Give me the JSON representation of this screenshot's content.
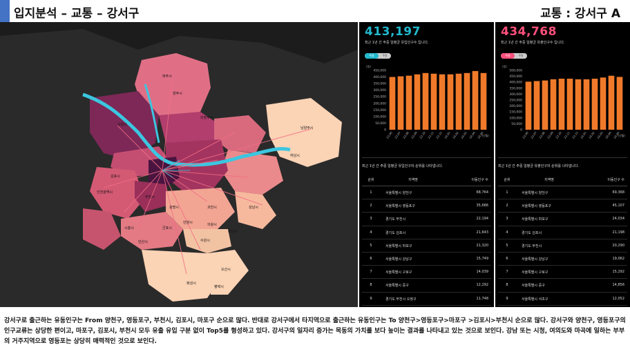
{
  "header": {
    "title": "입지분석 – 교통 – 강서구",
    "right": "교통 : 강서구 A"
  },
  "colors": {
    "accent": "#4472c4",
    "inflow": "#22b8cc",
    "outflow": "#ff4f7b",
    "bar": "#f07a2a"
  },
  "map": {
    "labels": [
      "파주시",
      "고양시",
      "김포시",
      "부천시",
      "인천광역시",
      "시흥시",
      "안산시",
      "광명시",
      "과천시",
      "성남시",
      "하남시",
      "남양주시",
      "의정부시",
      "양주시",
      "용인시",
      "화성시",
      "수원시",
      "안양시",
      "군포시",
      "의왕시",
      "오산시",
      "평택시"
    ]
  },
  "inflow": {
    "total": "413,197",
    "subtitle": "최근 1년 간 주중 일평균 유입인구수 입니다.",
    "toggle_on": "주중",
    "toggle_off": "주말",
    "y_unit": "(명)",
    "x_unit": "(년월)",
    "table_title": "최근 1년 간 주중 일평균 유입인구의 순위를 나타냅니다.",
    "table_headers": [
      "순위",
      "지역명",
      "이동인구 수"
    ],
    "rows": [
      [
        "1",
        "서울특별시 양천구",
        "68,764"
      ],
      [
        "2",
        "서울특별시 영등포구",
        "35,686"
      ],
      [
        "3",
        "경기도 부천시",
        "22,194"
      ],
      [
        "4",
        "경기도 김포시",
        "21,643"
      ],
      [
        "5",
        "서울특별시 마포구",
        "21,320"
      ],
      [
        "6",
        "서울특별시 강남구",
        "15,749"
      ],
      [
        "7",
        "서울특별시 구로구",
        "14,039"
      ],
      [
        "8",
        "서울특별시 중구",
        "12,292"
      ],
      [
        "9",
        "경기도 부천시 오정구",
        "11,748"
      ],
      [
        "10",
        "인천광역시 서구",
        "11,196"
      ]
    ]
  },
  "outflow": {
    "total": "434,768",
    "subtitle": "최근 1년 간 주중 일평균 유출인구수 입니다.",
    "toggle_on": "주중",
    "toggle_off": "주말",
    "y_unit": "(명)",
    "x_unit": "(년월)",
    "table_title": "최근 1년 간 주중 일평균 유출인구의 순위를 나타냅니다.",
    "table_headers": [
      "순위",
      "지역명",
      "이동인구 수"
    ],
    "rows": [
      [
        "1",
        "서울특별시 양천구",
        "69,368"
      ],
      [
        "2",
        "서울특별시 영등포구",
        "45,107"
      ],
      [
        "3",
        "서울특별시 마포구",
        "24,034"
      ],
      [
        "4",
        "경기도 김포시",
        "21,198"
      ],
      [
        "5",
        "경기도 부천시",
        "20,290"
      ],
      [
        "6",
        "서울특별시 강남구",
        "19,062"
      ],
      [
        "7",
        "서울특별시 구로구",
        "15,292"
      ],
      [
        "8",
        "서울특별시 중구",
        "14,856"
      ],
      [
        "9",
        "서울특별시 서초구",
        "12,052"
      ],
      [
        "10",
        "서울특별시 종로구",
        "11,610"
      ]
    ]
  },
  "chart_data": [
    {
      "type": "bar",
      "title": "최근 1년 간 주중 일평균 유입인구수",
      "ylabel": "(명)",
      "xlabel": "(년월)",
      "categories": [
        "23.06",
        "23.07",
        "23.08",
        "23.09",
        "23.10",
        "23.11",
        "23.12",
        "24.01",
        "24.02",
        "24.03",
        "24.04",
        "24.05"
      ],
      "values": [
        400000,
        405000,
        410000,
        420000,
        430000,
        425000,
        420000,
        420000,
        425000,
        430000,
        445000,
        430000
      ],
      "yticks": [
        0,
        50000,
        100000,
        150000,
        200000,
        250000,
        300000,
        350000,
        400000,
        450000
      ],
      "ytick_labels": [
        "0",
        "50,000",
        "100,000",
        "150,000",
        "200,000",
        "250,000",
        "300,000",
        "350,000",
        "400,000",
        "450,000"
      ],
      "ylim": [
        0,
        450000
      ]
    },
    {
      "type": "bar",
      "title": "최근 1년 간 주중 일평균 유출인구수",
      "ylabel": "(명)",
      "xlabel": "(년월)",
      "categories": [
        "23.06",
        "23.07",
        "23.08",
        "23.09",
        "23.10",
        "23.11",
        "23.12",
        "24.01",
        "24.02",
        "24.03",
        "24.04",
        "24.05"
      ],
      "values": [
        405000,
        410000,
        415000,
        425000,
        430000,
        430000,
        425000,
        425000,
        430000,
        440000,
        455000,
        445000
      ],
      "yticks": [
        0,
        50000,
        100000,
        150000,
        200000,
        250000,
        300000,
        350000,
        400000,
        450000,
        500000
      ],
      "ytick_labels": [
        "0",
        "50,000",
        "100,000",
        "150,000",
        "200,000",
        "250,000",
        "300,000",
        "350,000",
        "400,000",
        "450,000",
        "500,000"
      ],
      "ylim": [
        0,
        500000
      ]
    }
  ],
  "description": "강서구로 출근하는 유동인구는 From 양천구, 영등포구, 부천시, 김포시, 마포구 순으로 많다. 반대로 강서구에서 타지역으로 출근하는 유동인구는 To 양천구>영등포구>마포구 >김포시>부천시 순으로 많다. 강서구와 양천구, 영등포구의 인구교류는 상당한 편이고, 마포구, 김포시, 부천시 모두 유출 유입 구분 없이 Top5를 형성하고 있다. 강서구의 일자리 증가는 목동의 가치를 보다 높이는 결과를 나타내고 있는 것으로 보인다. 강남 또는 시청, 여의도와 마곡에 일하는 부부의 거주지역으로 영등포는 상당히 매력적인 것으로 보인다."
}
